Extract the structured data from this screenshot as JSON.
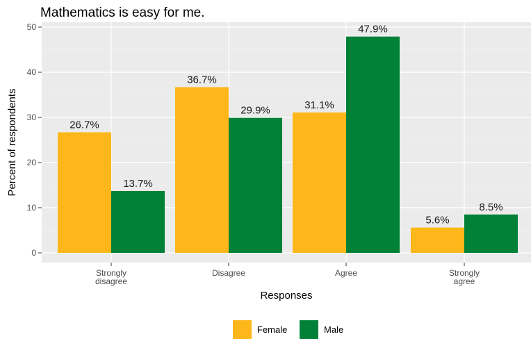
{
  "chart_data": {
    "type": "bar",
    "title": "Mathematics is easy for me.",
    "xlabel": "Responses",
    "ylabel": "Percent of respondents",
    "ylim": [
      0,
      50
    ],
    "yticks": [
      0,
      10,
      20,
      30,
      40,
      50
    ],
    "categories": [
      [
        "Strongly",
        "disagree"
      ],
      [
        "Disagree"
      ],
      [
        "Agree"
      ],
      [
        "Strongly",
        "agree"
      ]
    ],
    "series": [
      {
        "name": "Female",
        "color": "#FDB71A",
        "values": [
          26.7,
          36.7,
          31.1,
          5.6
        ],
        "labels": [
          "26.7%",
          "36.7%",
          "31.1%",
          "5.6%"
        ]
      },
      {
        "name": "Male",
        "color": "#008137",
        "values": [
          13.7,
          29.9,
          47.9,
          8.5
        ],
        "labels": [
          "13.7%",
          "29.9%",
          "47.9%",
          "8.5%"
        ]
      }
    ],
    "grid": true,
    "legend": "bottom",
    "panel_background": "#EBEBEB"
  }
}
